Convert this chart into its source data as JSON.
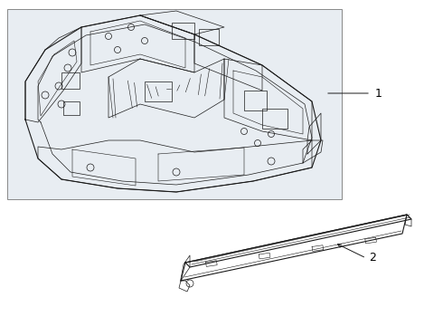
{
  "background_color": "#ffffff",
  "panel_bg": "#e8edf2",
  "line_color": "#1a1a1a",
  "label_color": "#000000",
  "label1": "1",
  "label2": "2",
  "figsize": [
    4.9,
    3.6
  ],
  "dpi": 100
}
